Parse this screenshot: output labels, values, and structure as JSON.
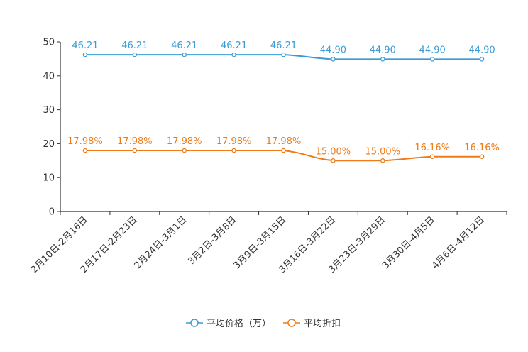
{
  "chart_data": {
    "type": "line",
    "categories": [
      "2月10日-2月16日",
      "2月17日-2月23日",
      "2月24日-3月1日",
      "3月2日-3月8日",
      "3月9日-3月15日",
      "3月16日-3月22日",
      "3月23日-3月29日",
      "3月30日-4月5日",
      "4月6日-4月12日"
    ],
    "series": [
      {
        "name": "平均价格（万）",
        "color": "#3a9bd5",
        "values": [
          46.21,
          46.21,
          46.21,
          46.21,
          46.21,
          44.9,
          44.9,
          44.9,
          44.9
        ],
        "labels": [
          "46.21",
          "46.21",
          "46.21",
          "46.21",
          "46.21",
          "44.90",
          "44.90",
          "44.90",
          "44.90"
        ]
      },
      {
        "name": "平均折扣",
        "color": "#f07a16",
        "values": [
          17.98,
          17.98,
          17.98,
          17.98,
          17.98,
          15.0,
          15.0,
          16.16,
          16.16
        ],
        "labels": [
          "17.98%",
          "17.98%",
          "17.98%",
          "17.98%",
          "17.98%",
          "15.00%",
          "15.00%",
          "16.16%",
          "16.16%"
        ]
      }
    ],
    "yticks": [
      "0",
      "10",
      "20",
      "30",
      "40",
      "50"
    ],
    "ylim": [
      0,
      50
    ],
    "title": "",
    "xlabel": "",
    "ylabel": "",
    "legend": "bottom-center"
  }
}
